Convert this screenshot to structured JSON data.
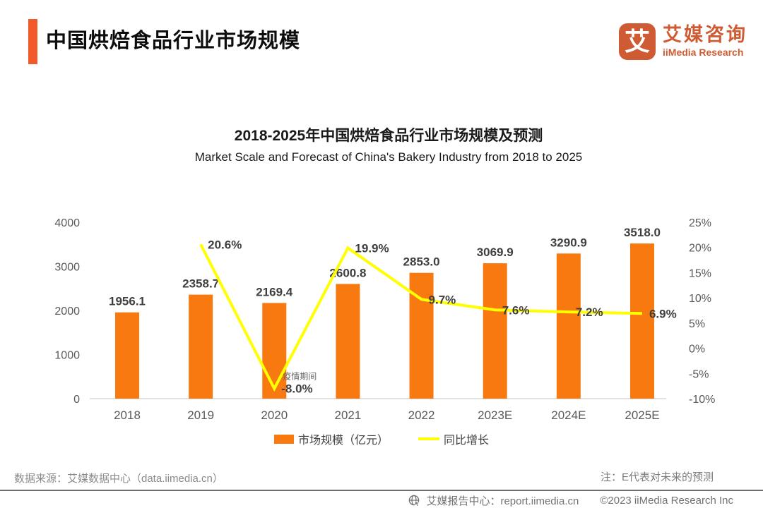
{
  "header": {
    "title": "中国烘焙食品行业市场规模",
    "logo": {
      "icon_char": "艾",
      "name_cn": "艾媒咨询",
      "name_en": "iiMedia Research"
    }
  },
  "chart": {
    "title_cn": "2018-2025年中国烘焙食品行业市场规模及预测",
    "title_en": "Market Scale and Forecast of China's Bakery Industry from 2018 to 2025"
  },
  "chart_data": {
    "type": "combo",
    "categories": [
      "2018",
      "2019",
      "2020",
      "2021",
      "2022",
      "2023E",
      "2024E",
      "2025E"
    ],
    "series": [
      {
        "name": "市场规模（亿元）",
        "type": "bar",
        "color": "#F8790F",
        "values": [
          1956.1,
          2358.7,
          2169.4,
          2600.8,
          2853.0,
          3069.9,
          3290.9,
          3518.0
        ]
      },
      {
        "name": "同比增长",
        "type": "line",
        "color": "#FFFF00",
        "values": [
          null,
          20.6,
          -8.0,
          19.9,
          9.7,
          7.6,
          7.2,
          6.9
        ],
        "suffix": "%"
      }
    ],
    "left_axis": {
      "min": 0,
      "max": 4000,
      "ticks": [
        0,
        1000,
        2000,
        3000,
        4000
      ]
    },
    "right_axis": {
      "min": -10,
      "max": 25,
      "ticks": [
        -10,
        -5,
        0,
        5,
        10,
        15,
        20,
        25
      ],
      "suffix": "%"
    },
    "annotation": {
      "text": "疫情期间",
      "category": "2020"
    },
    "legend_position": "bottom",
    "grid": false,
    "label_color": "#3f3f3f",
    "axis_color": "#595959"
  },
  "footer": {
    "source": "数据来源：艾媒数据中心（data.iimedia.cn）",
    "note": "注：E代表对未来的预测",
    "report_center": "艾媒报告中心：report.iimedia.cn",
    "copyright": "©2023 iiMedia Research  Inc"
  }
}
